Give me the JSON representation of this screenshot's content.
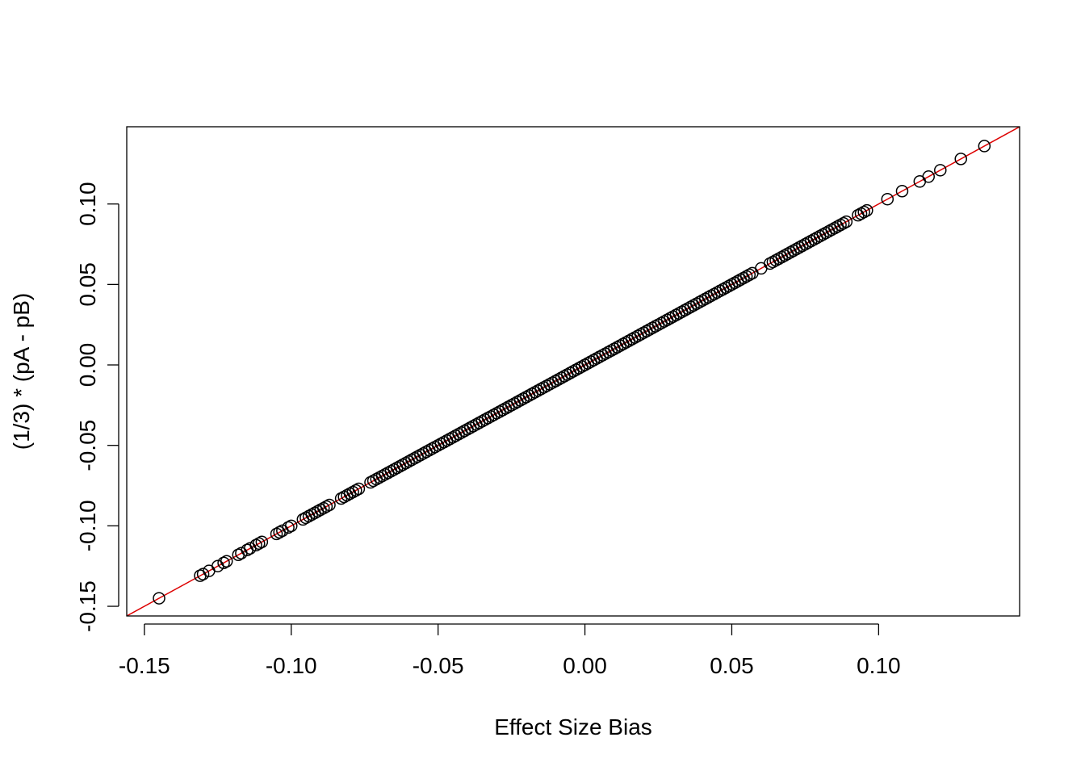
{
  "chart_data": {
    "type": "scatter",
    "title": "",
    "xlabel": "Effect Size Bias",
    "ylabel": "(1/3) * (pA - pB)",
    "xlim": [
      -0.156,
      0.148
    ],
    "ylim": [
      -0.156,
      0.148
    ],
    "x_ticks": [
      -0.15,
      -0.1,
      -0.05,
      0.0,
      0.05,
      0.1
    ],
    "x_tick_labels": [
      "-0.15",
      "-0.10",
      "-0.05",
      "0.00",
      "0.05",
      "0.10"
    ],
    "y_ticks": [
      -0.15,
      -0.1,
      -0.05,
      0.0,
      0.05,
      0.1
    ],
    "y_tick_labels": [
      "-0.15",
      "-0.10",
      "-0.05",
      "0.00",
      "0.05",
      "0.10"
    ],
    "grid": false,
    "point_color": "#000000",
    "marker": "open-circle",
    "reference_line": {
      "type": "identity",
      "slope": 1,
      "intercept": 0,
      "color": "#dd0000"
    },
    "series": [
      {
        "points": [
          [
            -0.145,
            -0.145
          ],
          [
            -0.131,
            -0.131
          ],
          [
            -0.13,
            -0.13
          ],
          [
            -0.128,
            -0.128
          ],
          [
            -0.125,
            -0.125
          ],
          [
            -0.123,
            -0.123
          ],
          [
            -0.122,
            -0.122
          ],
          [
            -0.118,
            -0.118
          ],
          [
            -0.117,
            -0.117
          ],
          [
            -0.115,
            -0.115
          ],
          [
            -0.114,
            -0.114
          ],
          [
            -0.112,
            -0.112
          ],
          [
            -0.111,
            -0.111
          ],
          [
            -0.11,
            -0.11
          ],
          [
            -0.105,
            -0.105
          ],
          [
            -0.104,
            -0.104
          ],
          [
            -0.103,
            -0.103
          ],
          [
            -0.101,
            -0.101
          ],
          [
            -0.1,
            -0.1
          ],
          [
            -0.096,
            -0.096
          ],
          [
            -0.095,
            -0.095
          ],
          [
            -0.094,
            -0.094
          ],
          [
            -0.093,
            -0.093
          ],
          [
            -0.092,
            -0.092
          ],
          [
            -0.091,
            -0.091
          ],
          [
            -0.09,
            -0.09
          ],
          [
            -0.089,
            -0.089
          ],
          [
            -0.088,
            -0.088
          ],
          [
            -0.087,
            -0.087
          ],
          [
            -0.083,
            -0.083
          ],
          [
            -0.082,
            -0.082
          ],
          [
            -0.081,
            -0.081
          ],
          [
            -0.08,
            -0.08
          ],
          [
            -0.079,
            -0.079
          ],
          [
            -0.078,
            -0.078
          ],
          [
            -0.077,
            -0.077
          ],
          [
            -0.073,
            -0.073
          ],
          [
            -0.072,
            -0.072
          ],
          [
            -0.071,
            -0.071
          ],
          [
            -0.07,
            -0.07
          ],
          [
            -0.069,
            -0.069
          ],
          [
            -0.068,
            -0.068
          ],
          [
            -0.067,
            -0.067
          ],
          [
            -0.066,
            -0.066
          ],
          [
            -0.065,
            -0.065
          ],
          [
            -0.064,
            -0.064
          ],
          [
            -0.063,
            -0.063
          ],
          [
            -0.062,
            -0.062
          ],
          [
            -0.061,
            -0.061
          ],
          [
            -0.06,
            -0.06
          ],
          [
            -0.059,
            -0.059
          ],
          [
            -0.058,
            -0.058
          ],
          [
            -0.057,
            -0.057
          ],
          [
            -0.056,
            -0.056
          ],
          [
            -0.055,
            -0.055
          ],
          [
            -0.054,
            -0.054
          ],
          [
            -0.053,
            -0.053
          ],
          [
            -0.052,
            -0.052
          ],
          [
            -0.051,
            -0.051
          ],
          [
            -0.05,
            -0.05
          ],
          [
            -0.049,
            -0.049
          ],
          [
            -0.048,
            -0.048
          ],
          [
            -0.047,
            -0.047
          ],
          [
            -0.046,
            -0.046
          ],
          [
            -0.045,
            -0.045
          ],
          [
            -0.044,
            -0.044
          ],
          [
            -0.043,
            -0.043
          ],
          [
            -0.042,
            -0.042
          ],
          [
            -0.041,
            -0.041
          ],
          [
            -0.04,
            -0.04
          ],
          [
            -0.039,
            -0.039
          ],
          [
            -0.038,
            -0.038
          ],
          [
            -0.037,
            -0.037
          ],
          [
            -0.036,
            -0.036
          ],
          [
            -0.035,
            -0.035
          ],
          [
            -0.034,
            -0.034
          ],
          [
            -0.033,
            -0.033
          ],
          [
            -0.032,
            -0.032
          ],
          [
            -0.031,
            -0.031
          ],
          [
            -0.03,
            -0.03
          ],
          [
            -0.029,
            -0.029
          ],
          [
            -0.028,
            -0.028
          ],
          [
            -0.027,
            -0.027
          ],
          [
            -0.026,
            -0.026
          ],
          [
            -0.025,
            -0.025
          ],
          [
            -0.024,
            -0.024
          ],
          [
            -0.023,
            -0.023
          ],
          [
            -0.022,
            -0.022
          ],
          [
            -0.021,
            -0.021
          ],
          [
            -0.02,
            -0.02
          ],
          [
            -0.019,
            -0.019
          ],
          [
            -0.018,
            -0.018
          ],
          [
            -0.017,
            -0.017
          ],
          [
            -0.016,
            -0.016
          ],
          [
            -0.015,
            -0.015
          ],
          [
            -0.014,
            -0.014
          ],
          [
            -0.013,
            -0.013
          ],
          [
            -0.012,
            -0.012
          ],
          [
            -0.011,
            -0.011
          ],
          [
            -0.01,
            -0.01
          ],
          [
            -0.009,
            -0.009
          ],
          [
            -0.008,
            -0.008
          ],
          [
            -0.007,
            -0.007
          ],
          [
            -0.006,
            -0.006
          ],
          [
            -0.005,
            -0.005
          ],
          [
            -0.004,
            -0.004
          ],
          [
            -0.003,
            -0.003
          ],
          [
            -0.002,
            -0.002
          ],
          [
            -0.001,
            -0.001
          ],
          [
            0.0,
            0.0
          ],
          [
            0.001,
            0.001
          ],
          [
            0.002,
            0.002
          ],
          [
            0.003,
            0.003
          ],
          [
            0.004,
            0.004
          ],
          [
            0.005,
            0.005
          ],
          [
            0.006,
            0.006
          ],
          [
            0.007,
            0.007
          ],
          [
            0.008,
            0.008
          ],
          [
            0.009,
            0.009
          ],
          [
            0.01,
            0.01
          ],
          [
            0.011,
            0.011
          ],
          [
            0.012,
            0.012
          ],
          [
            0.013,
            0.013
          ],
          [
            0.014,
            0.014
          ],
          [
            0.015,
            0.015
          ],
          [
            0.016,
            0.016
          ],
          [
            0.017,
            0.017
          ],
          [
            0.018,
            0.018
          ],
          [
            0.019,
            0.019
          ],
          [
            0.02,
            0.02
          ],
          [
            0.021,
            0.021
          ],
          [
            0.022,
            0.022
          ],
          [
            0.023,
            0.023
          ],
          [
            0.024,
            0.024
          ],
          [
            0.025,
            0.025
          ],
          [
            0.026,
            0.026
          ],
          [
            0.027,
            0.027
          ],
          [
            0.028,
            0.028
          ],
          [
            0.029,
            0.029
          ],
          [
            0.03,
            0.03
          ],
          [
            0.031,
            0.031
          ],
          [
            0.032,
            0.032
          ],
          [
            0.033,
            0.033
          ],
          [
            0.034,
            0.034
          ],
          [
            0.035,
            0.035
          ],
          [
            0.036,
            0.036
          ],
          [
            0.037,
            0.037
          ],
          [
            0.038,
            0.038
          ],
          [
            0.039,
            0.039
          ],
          [
            0.04,
            0.04
          ],
          [
            0.041,
            0.041
          ],
          [
            0.042,
            0.042
          ],
          [
            0.043,
            0.043
          ],
          [
            0.044,
            0.044
          ],
          [
            0.045,
            0.045
          ],
          [
            0.046,
            0.046
          ],
          [
            0.047,
            0.047
          ],
          [
            0.048,
            0.048
          ],
          [
            0.049,
            0.049
          ],
          [
            0.05,
            0.05
          ],
          [
            0.051,
            0.051
          ],
          [
            0.052,
            0.052
          ],
          [
            0.053,
            0.053
          ],
          [
            0.054,
            0.054
          ],
          [
            0.055,
            0.055
          ],
          [
            0.056,
            0.056
          ],
          [
            0.057,
            0.057
          ],
          [
            0.06,
            0.06
          ],
          [
            0.063,
            0.063
          ],
          [
            0.064,
            0.064
          ],
          [
            0.065,
            0.065
          ],
          [
            0.066,
            0.066
          ],
          [
            0.067,
            0.067
          ],
          [
            0.068,
            0.068
          ],
          [
            0.069,
            0.069
          ],
          [
            0.07,
            0.07
          ],
          [
            0.071,
            0.071
          ],
          [
            0.072,
            0.072
          ],
          [
            0.073,
            0.073
          ],
          [
            0.074,
            0.074
          ],
          [
            0.075,
            0.075
          ],
          [
            0.076,
            0.076
          ],
          [
            0.077,
            0.077
          ],
          [
            0.078,
            0.078
          ],
          [
            0.079,
            0.079
          ],
          [
            0.08,
            0.08
          ],
          [
            0.081,
            0.081
          ],
          [
            0.082,
            0.082
          ],
          [
            0.083,
            0.083
          ],
          [
            0.084,
            0.084
          ],
          [
            0.085,
            0.085
          ],
          [
            0.086,
            0.086
          ],
          [
            0.087,
            0.087
          ],
          [
            0.088,
            0.088
          ],
          [
            0.089,
            0.089
          ],
          [
            0.093,
            0.093
          ],
          [
            0.094,
            0.094
          ],
          [
            0.095,
            0.095
          ],
          [
            0.096,
            0.096
          ],
          [
            0.103,
            0.103
          ],
          [
            0.108,
            0.108
          ],
          [
            0.114,
            0.114
          ],
          [
            0.117,
            0.117
          ],
          [
            0.121,
            0.121
          ],
          [
            0.128,
            0.128
          ],
          [
            0.136,
            0.136
          ]
        ]
      }
    ]
  }
}
